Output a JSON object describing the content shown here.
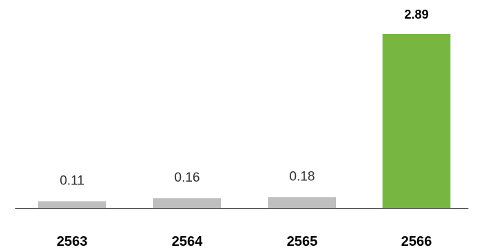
{
  "chart_data": {
    "type": "bar",
    "categories": [
      "2563",
      "2564",
      "2565",
      "2566"
    ],
    "values": [
      0.11,
      0.16,
      0.18,
      2.89
    ],
    "value_labels": [
      "0.11",
      "0.16",
      "0.18",
      "2.89"
    ],
    "ylim": [
      0,
      2.89
    ],
    "grid": false,
    "legend": "none",
    "colors": [
      "#bfbfbf",
      "#bfbfbf",
      "#bfbfbf",
      "#77b640"
    ],
    "label_colors": [
      "#333333",
      "#333333",
      "#333333",
      "#000000"
    ],
    "axis_color": "#000000"
  }
}
